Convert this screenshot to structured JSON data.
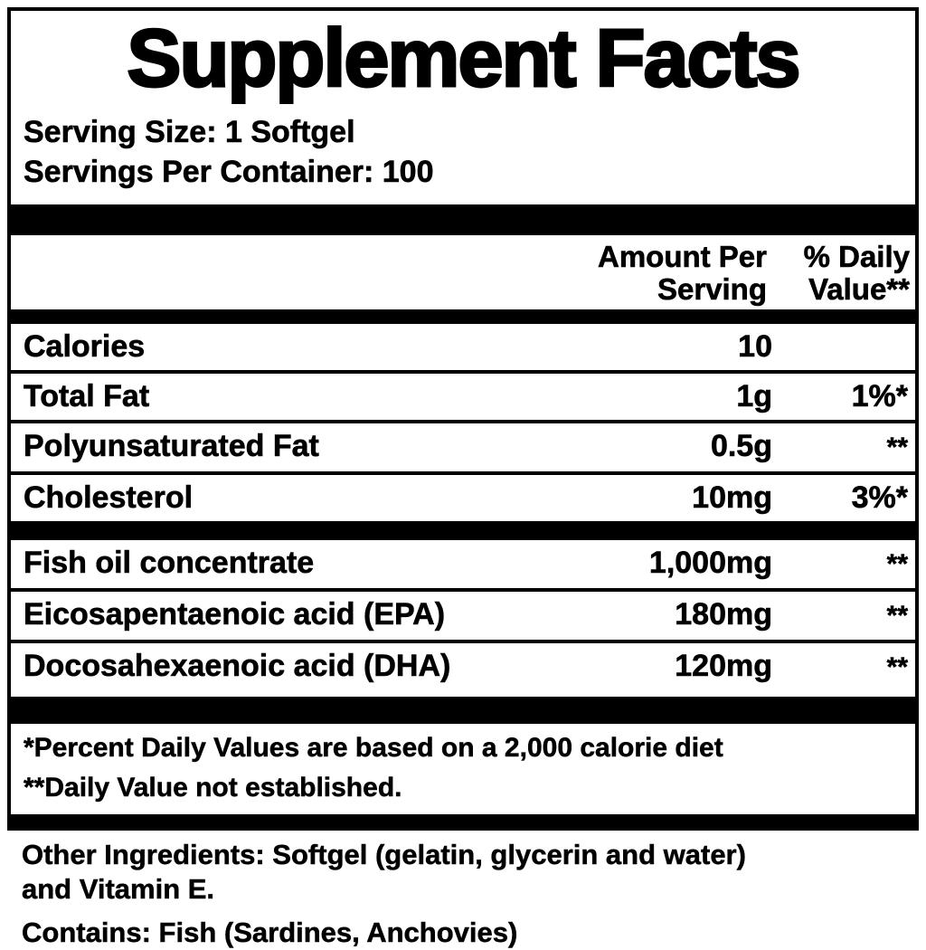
{
  "colors": {
    "text": "#000000",
    "background": "#ffffff"
  },
  "title": "Supplement Facts",
  "serving": {
    "size_label": "Serving Size: 1 Softgel",
    "per_container_label": "Servings Per Container: 100"
  },
  "table": {
    "headers": {
      "amount": "Amount Per Serving",
      "daily_value": "% Daily Value**"
    },
    "rows": [
      {
        "name": "Calories",
        "amount": "10",
        "dv": ""
      },
      {
        "name": "Total Fat",
        "amount": "1g",
        "dv": "1%*"
      },
      {
        "name": "Polyunsaturated Fat",
        "amount": "0.5g",
        "dv": "**"
      },
      {
        "name": "Cholesterol",
        "amount": "10mg",
        "dv": "3%*"
      },
      {
        "name": "Fish oil concentrate",
        "amount": "1,000mg",
        "dv": "**"
      },
      {
        "name": "Eicosapentaenoic acid (EPA)",
        "amount": "180mg",
        "dv": "**"
      },
      {
        "name": "Docosahexaenoic acid (DHA)",
        "amount": "120mg",
        "dv": "**"
      }
    ]
  },
  "footnotes": {
    "percent_daily_value": "*Percent Daily Values are based on a 2,000 calorie diet",
    "not_established": "**Daily Value not established."
  },
  "other_ingredients": {
    "line1": "Other Ingredients: Softgel (gelatin, glycerin and water)",
    "line2": "and Vitamin E.",
    "contains": "Contains: Fish (Sardines, Anchovies)"
  }
}
